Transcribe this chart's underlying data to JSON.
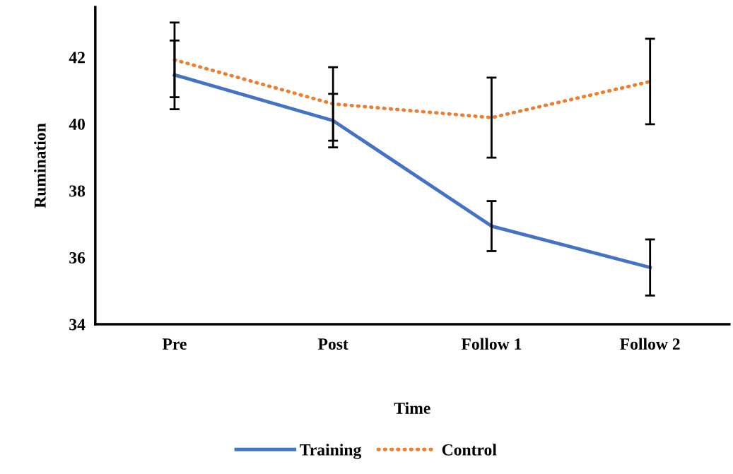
{
  "chart_data": {
    "type": "line",
    "xlabel": "Time",
    "ylabel": "Rumination",
    "categories": [
      "Pre",
      "Post",
      "Follow 1",
      "Follow 2"
    ],
    "series": [
      {
        "name": "Training",
        "color": "#4472c4",
        "line_style": "solid",
        "values": [
          41.47,
          40.1,
          36.94,
          35.7
        ],
        "errors": [
          1.03,
          0.8,
          0.75,
          0.84
        ]
      },
      {
        "name": "Control",
        "color": "#ed7d31",
        "line_style": "dotted",
        "values": [
          41.92,
          40.6,
          40.19,
          41.27
        ],
        "errors": [
          1.12,
          1.1,
          1.2,
          1.28
        ]
      }
    ],
    "ylim": [
      34,
      43.5
    ],
    "yticks": [
      34,
      36,
      38,
      40,
      42
    ],
    "grid": false,
    "legend": "bottom",
    "marker": "none"
  }
}
